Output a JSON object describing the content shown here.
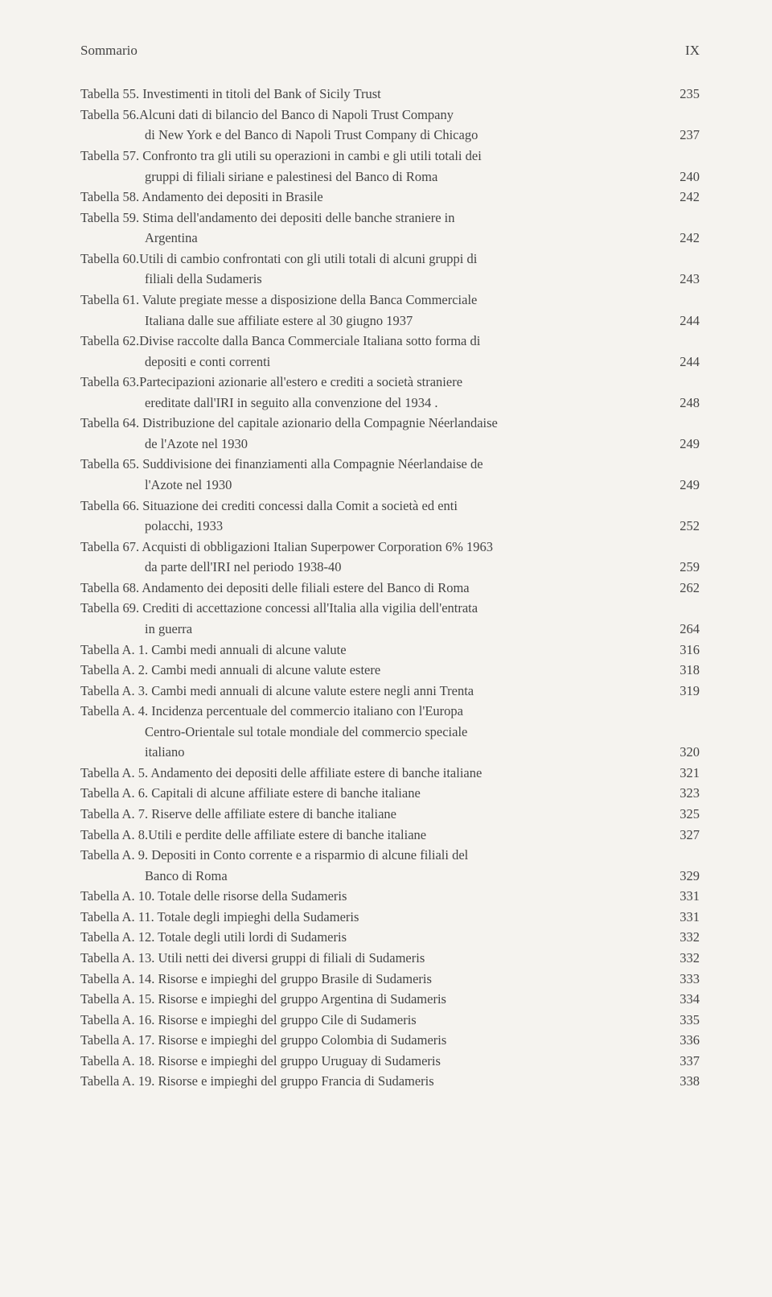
{
  "header": {
    "left": "Sommario",
    "right": "IX"
  },
  "entries": [
    {
      "lines": [
        {
          "t": "Tabella 55. Investimenti in titoli del Bank of Sicily Trust",
          "p": "235"
        }
      ]
    },
    {
      "lines": [
        {
          "t": "Tabella 56.Alcuni dati di bilancio del Banco di Napoli Trust Company"
        },
        {
          "t": "di New York e del Banco di Napoli Trust Company di Chicago",
          "p": "237",
          "indent": true
        }
      ]
    },
    {
      "lines": [
        {
          "t": "Tabella 57. Confronto tra gli utili su operazioni in cambi e gli utili totali dei"
        },
        {
          "t": "gruppi di filiali siriane e palestinesi del Banco di Roma",
          "p": "240",
          "indent": true
        }
      ]
    },
    {
      "lines": [
        {
          "t": "Tabella 58. Andamento dei depositi in Brasile",
          "p": "242"
        }
      ]
    },
    {
      "lines": [
        {
          "t": "Tabella 59. Stima dell'andamento dei depositi delle banche straniere in"
        },
        {
          "t": "Argentina",
          "p": "242",
          "indent": true
        }
      ]
    },
    {
      "lines": [
        {
          "t": "Tabella 60.Utili di cambio confrontati con gli utili totali di alcuni gruppi di"
        },
        {
          "t": "filiali della Sudameris",
          "p": "243",
          "indent": true
        }
      ]
    },
    {
      "lines": [
        {
          "t": "Tabella 61. Valute pregiate messe a disposizione della Banca Commerciale"
        },
        {
          "t": "Italiana dalle sue affiliate estere al 30 giugno 1937",
          "p": "244",
          "indent": true
        }
      ]
    },
    {
      "lines": [
        {
          "t": "Tabella 62.Divise raccolte dalla Banca Commerciale Italiana sotto forma di"
        },
        {
          "t": "depositi e conti correnti",
          "p": "244",
          "indent": true
        }
      ]
    },
    {
      "lines": [
        {
          "t": "Tabella 63.Partecipazioni azionarie all'estero e crediti a società straniere"
        },
        {
          "t": "ereditate dall'IRI in seguito alla convenzione del 1934 .",
          "p": "248",
          "indent": true
        }
      ]
    },
    {
      "lines": [
        {
          "t": "Tabella 64. Distribuzione del capitale azionario della Compagnie Néerlandaise"
        },
        {
          "t": "de l'Azote nel 1930",
          "p": "249",
          "indent": true
        }
      ]
    },
    {
      "lines": [
        {
          "t": "Tabella 65. Suddivisione dei finanziamenti alla Compagnie Néerlandaise de"
        },
        {
          "t": "l'Azote nel 1930",
          "p": "249",
          "indent": true
        }
      ]
    },
    {
      "lines": [
        {
          "t": "Tabella 66. Situazione dei crediti concessi dalla Comit a società ed enti"
        },
        {
          "t": " polacchi, 1933",
          "p": "252",
          "indent": true
        }
      ]
    },
    {
      "lines": [
        {
          "t": "Tabella 67. Acquisti di obbligazioni Italian Superpower Corporation 6% 1963"
        },
        {
          "t": " da parte dell'IRI nel periodo 1938-40",
          "p": "259",
          "indent": true
        }
      ]
    },
    {
      "lines": [
        {
          "t": "Tabella 68. Andamento dei depositi delle filiali estere del Banco di Roma",
          "p": "262"
        }
      ]
    },
    {
      "lines": [
        {
          "t": "Tabella 69. Crediti di accettazione concessi all'Italia alla vigilia dell'entrata"
        },
        {
          "t": " in guerra",
          "p": "264",
          "indent": true
        }
      ]
    },
    {
      "lines": [
        {
          "t": "Tabella A. 1. Cambi medi annuali di alcune valute",
          "p": "316"
        }
      ]
    },
    {
      "lines": [
        {
          "t": "Tabella A. 2. Cambi medi annuali di alcune valute estere",
          "p": "318"
        }
      ]
    },
    {
      "lines": [
        {
          "t": "Tabella A. 3. Cambi medi annuali di alcune valute estere negli anni Trenta",
          "p": "319"
        }
      ]
    },
    {
      "lines": [
        {
          "t": "Tabella A. 4. Incidenza percentuale del commercio italiano con l'Europa"
        },
        {
          "t": " Centro-Orientale sul totale mondiale del commercio speciale",
          "indent": true
        },
        {
          "t": "italiano",
          "p": "320",
          "indent": true
        }
      ]
    },
    {
      "lines": [
        {
          "t": "Tabella A. 5. Andamento dei depositi delle affiliate estere di banche italiane",
          "p": "321"
        }
      ]
    },
    {
      "lines": [
        {
          "t": "Tabella A. 6. Capitali di alcune affiliate estere di banche italiane",
          "p": "323"
        }
      ]
    },
    {
      "lines": [
        {
          "t": "Tabella A. 7. Riserve delle affiliate estere di banche italiane",
          "p": "325"
        }
      ]
    },
    {
      "lines": [
        {
          "t": "Tabella A. 8.Utili e perdite delle affiliate estere di banche italiane",
          "p": "327"
        }
      ]
    },
    {
      "lines": [
        {
          "t": "Tabella A. 9. Depositi in Conto corrente e a risparmio di alcune filiali del"
        },
        {
          "t": " Banco di Roma",
          "p": "329",
          "indent": true
        }
      ]
    },
    {
      "lines": [
        {
          "t": "Tabella A. 10. Totale delle risorse della Sudameris",
          "p": "331"
        }
      ]
    },
    {
      "lines": [
        {
          "t": "Tabella A. 11. Totale degli impieghi della Sudameris",
          "p": "331"
        }
      ]
    },
    {
      "lines": [
        {
          "t": "Tabella A. 12. Totale degli utili lordi di Sudameris",
          "p": "332"
        }
      ]
    },
    {
      "lines": [
        {
          "t": "Tabella A. 13. Utili netti dei diversi gruppi di filiali di Sudameris",
          "p": "332"
        }
      ]
    },
    {
      "lines": [
        {
          "t": "Tabella A. 14. Risorse e impieghi del gruppo Brasile di Sudameris",
          "p": "333"
        }
      ]
    },
    {
      "lines": [
        {
          "t": "Tabella A. 15. Risorse e impieghi del gruppo Argentina di Sudameris",
          "p": "334"
        }
      ]
    },
    {
      "lines": [
        {
          "t": "Tabella A. 16. Risorse e impieghi del gruppo Cile di Sudameris",
          "p": "335"
        }
      ]
    },
    {
      "lines": [
        {
          "t": "Tabella A. 17. Risorse e impieghi del gruppo Colombia di Sudameris",
          "p": "336"
        }
      ]
    },
    {
      "lines": [
        {
          "t": "Tabella A. 18. Risorse e impieghi del gruppo Uruguay di Sudameris",
          "p": "337"
        }
      ]
    },
    {
      "lines": [
        {
          "t": "Tabella A. 19. Risorse e impieghi del gruppo Francia di Sudameris",
          "p": "338"
        }
      ]
    }
  ]
}
